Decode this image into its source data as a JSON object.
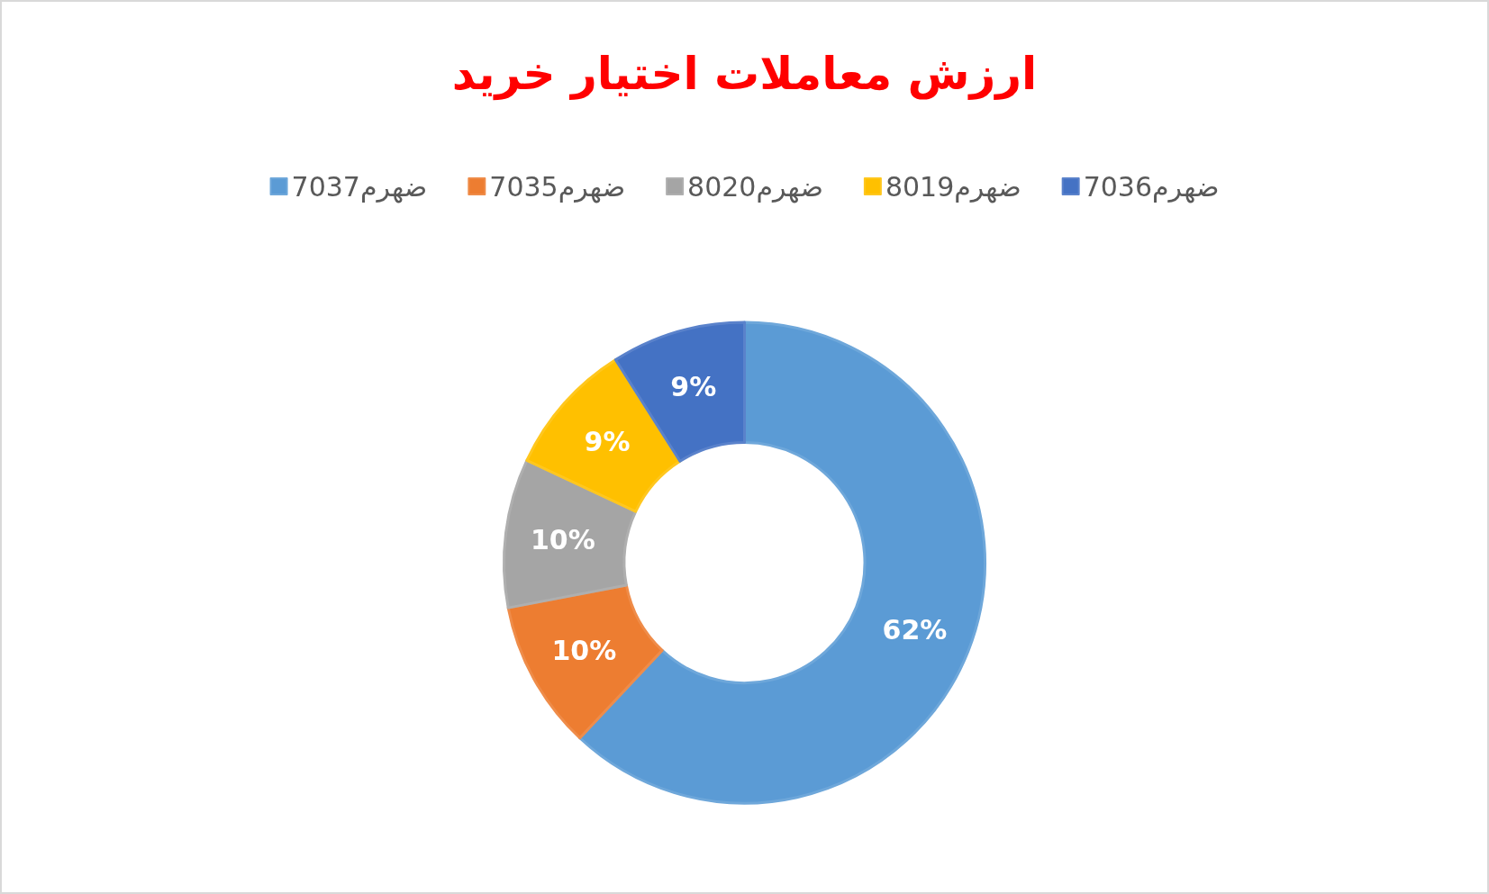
{
  "chart_data": {
    "type": "donut",
    "title": "ارزش معاملات اختیار خرید",
    "categories": [
      "ضهرم7037",
      "ضهرم7035",
      "ضهرم8020",
      "ضهرم8019",
      "ضهرم7036"
    ],
    "values": [
      62,
      10,
      10,
      9,
      9
    ],
    "colors": [
      "#5b9bd5",
      "#ed7d31",
      "#a5a5a5",
      "#ffc000",
      "#4472c4"
    ],
    "value_labels": [
      "62%",
      "10%",
      "10%",
      "9%",
      "9%"
    ],
    "legend": "top"
  }
}
